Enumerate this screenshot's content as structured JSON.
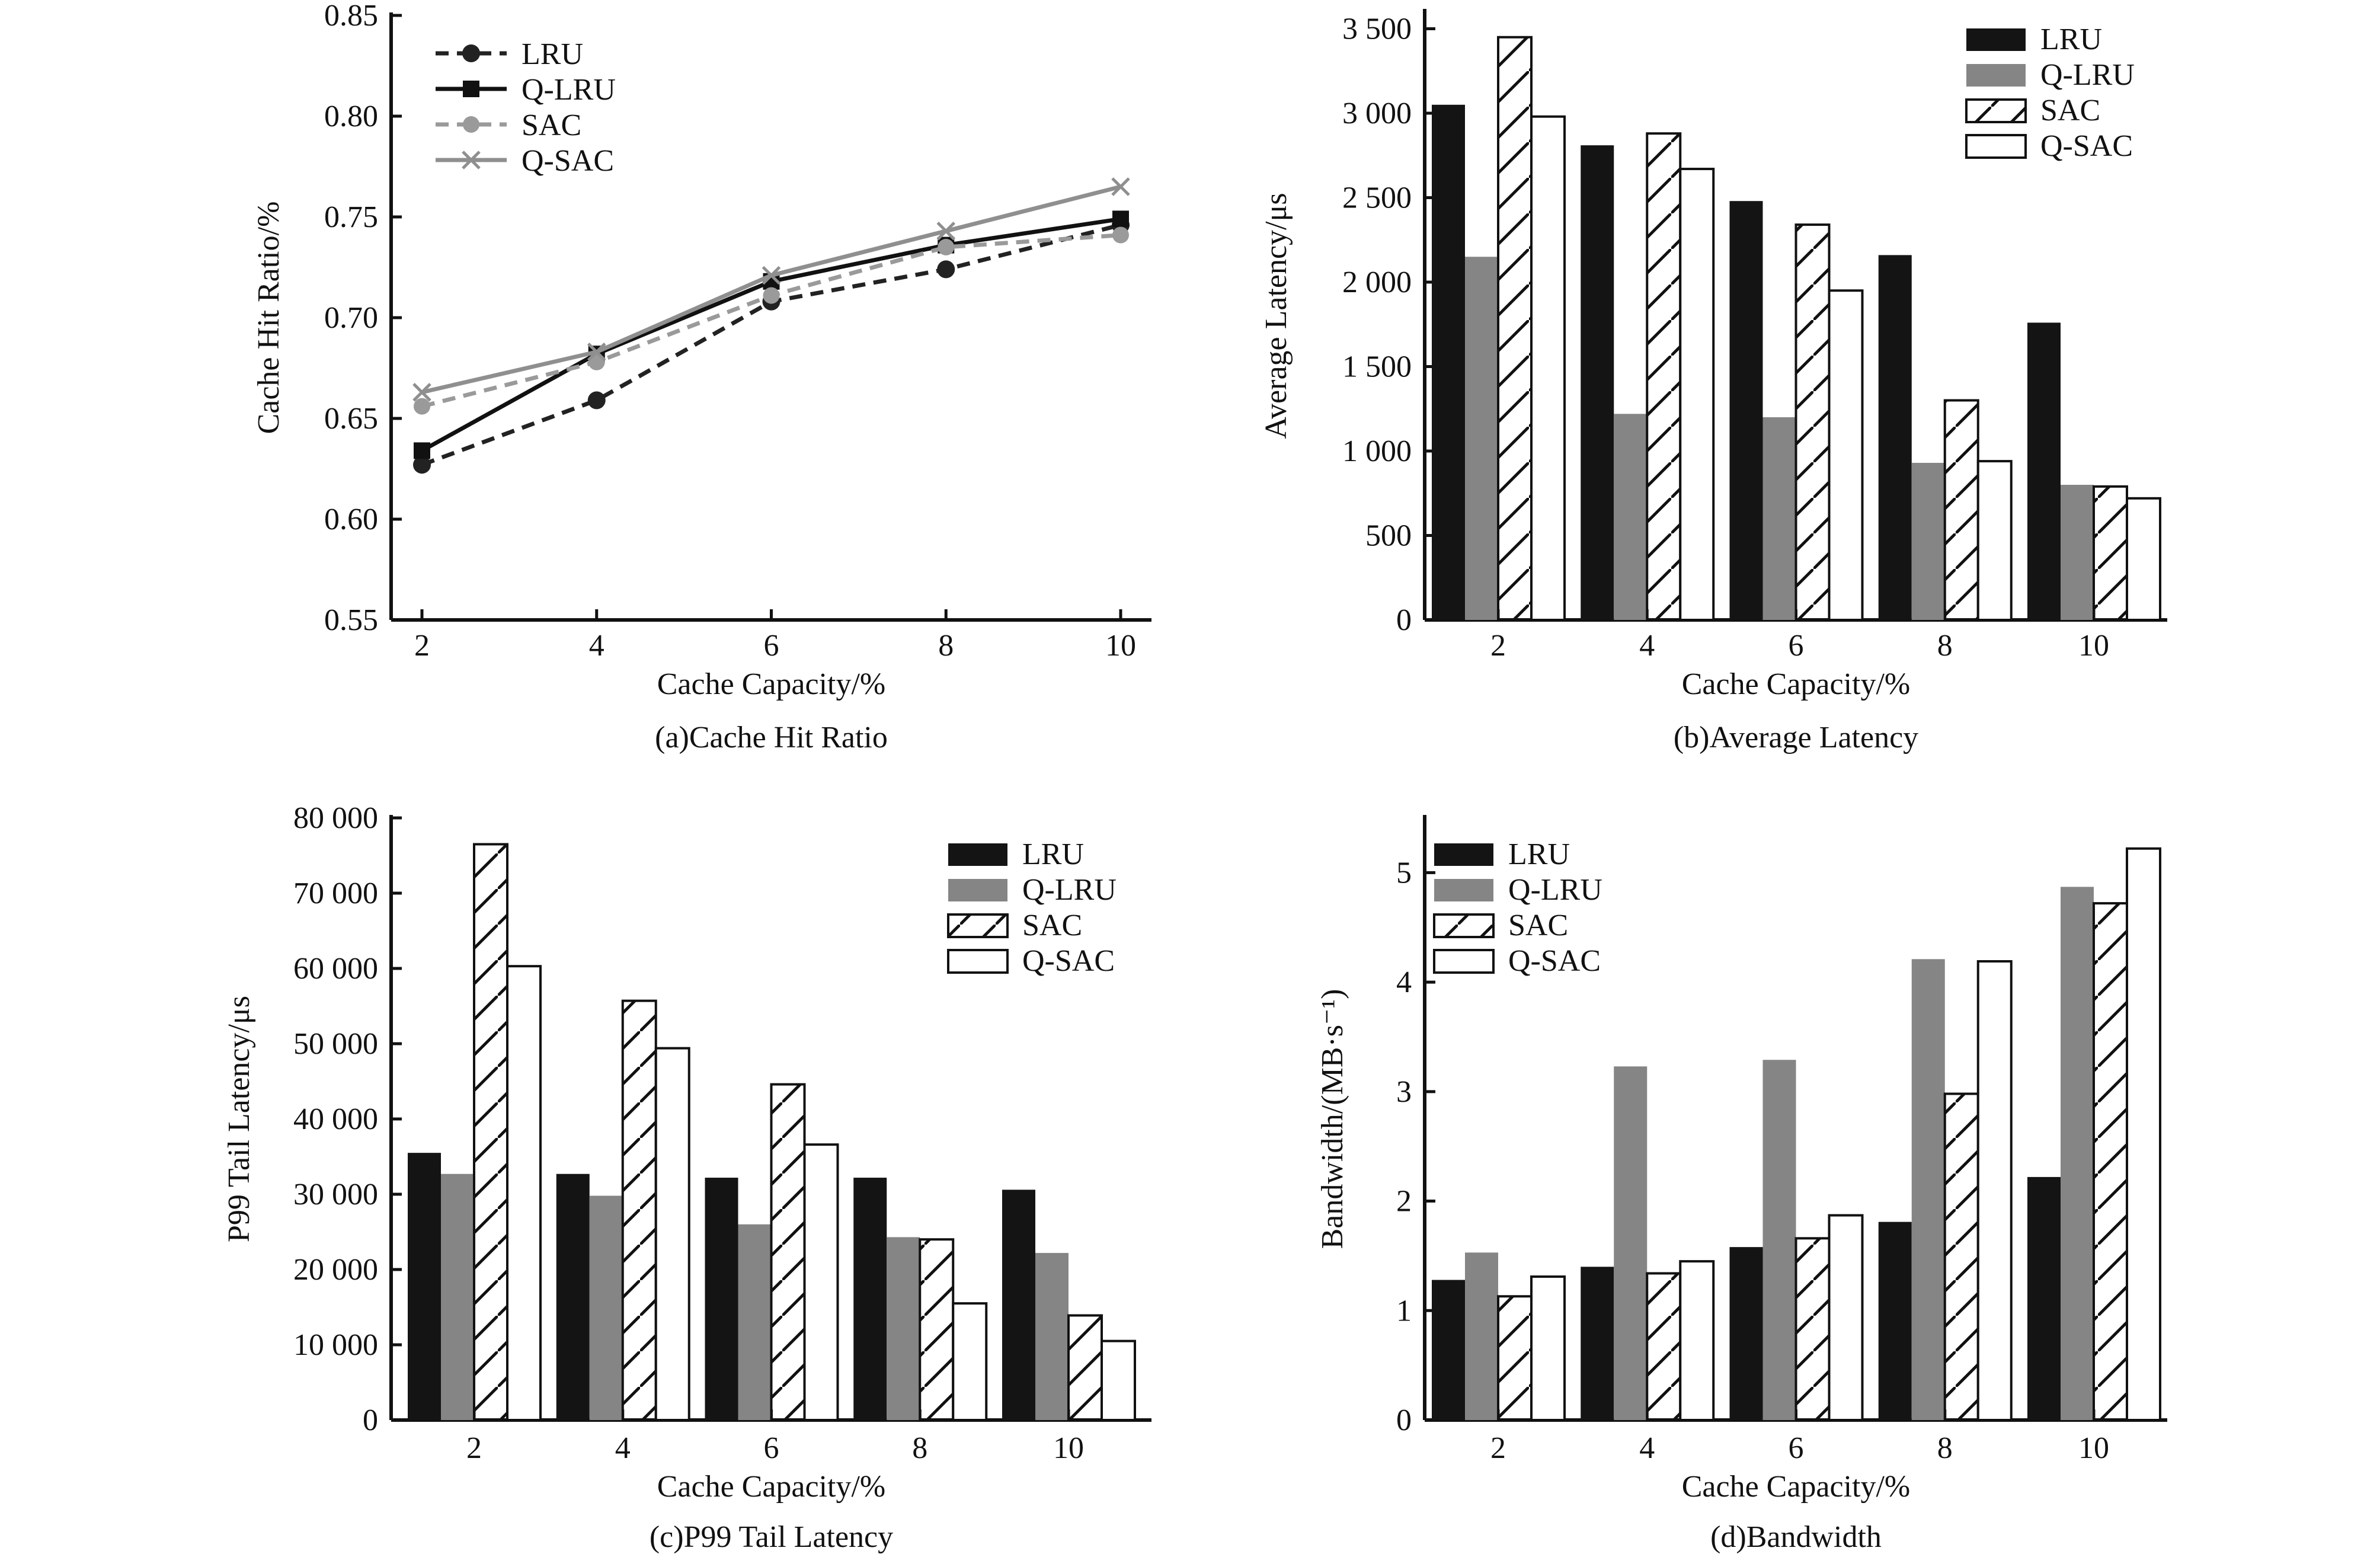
{
  "colors": {
    "LRU": "#141414",
    "Q-LRU": "#858585",
    "SAC": "#ffffff",
    "Q-SAC": "#ffffff",
    "Q-SAC-line": "#8f8f8f",
    "SAC-line": "#9a9a9a"
  },
  "chart_data": [
    {
      "type": "line",
      "title": "(a)Cache Hit Ratio",
      "xlabel": "Cache Capacity/%",
      "ylabel": "Cache Hit Ratio/%",
      "categories": [
        "2",
        "4",
        "6",
        "8",
        "10"
      ],
      "ylim": [
        0.55,
        0.85
      ],
      "yticks": [
        0.55,
        0.6,
        0.65,
        0.7,
        0.75,
        0.8,
        0.85
      ],
      "ytick_labels": [
        "0.55",
        "0.60",
        "0.65",
        "0.70",
        "0.75",
        "0.80",
        "0.85"
      ],
      "legend": "top-left",
      "series": [
        {
          "name": "LRU",
          "style": "dashed",
          "marker": "circle",
          "values": [
            0.627,
            0.659,
            0.708,
            0.724,
            0.746
          ]
        },
        {
          "name": "Q-LRU",
          "style": "solid",
          "marker": "square",
          "values": [
            0.634,
            0.682,
            0.718,
            0.736,
            0.749
          ]
        },
        {
          "name": "SAC",
          "style": "dashed",
          "marker": "hexagon",
          "values": [
            0.656,
            0.678,
            0.711,
            0.735,
            0.741
          ]
        },
        {
          "name": "Q-SAC",
          "style": "solid",
          "marker": "x",
          "values": [
            0.663,
            0.683,
            0.721,
            0.743,
            0.765
          ]
        }
      ]
    },
    {
      "type": "bar",
      "title": "(b)Average Latency",
      "xlabel": "Cache Capacity/%",
      "ylabel": "Average Latency/μs",
      "categories": [
        "2",
        "4",
        "6",
        "8",
        "10"
      ],
      "ylim": [
        0,
        3600
      ],
      "yticks": [
        0,
        500,
        1000,
        1500,
        2000,
        2500,
        3000,
        3500
      ],
      "ytick_labels": [
        "0",
        "500",
        "1 000",
        "1 500",
        "2 000",
        "2 500",
        "3 000",
        "3 500"
      ],
      "legend": "top-right",
      "series": [
        {
          "name": "LRU",
          "values": [
            3050,
            2810,
            2480,
            2160,
            1760
          ]
        },
        {
          "name": "Q-LRU",
          "values": [
            2150,
            1220,
            1200,
            930,
            800
          ]
        },
        {
          "name": "SAC",
          "values": [
            3450,
            2880,
            2340,
            1300,
            790
          ]
        },
        {
          "name": "Q-SAC",
          "values": [
            2980,
            2670,
            1950,
            940,
            720
          ]
        }
      ]
    },
    {
      "type": "bar",
      "title": "(c)P99 Tail Latency",
      "xlabel": "Cache Capacity/%",
      "ylabel": "P99 Tail Latency/μs",
      "categories": [
        "2",
        "4",
        "6",
        "8",
        "10"
      ],
      "ylim": [
        0,
        80000
      ],
      "yticks": [
        0,
        10000,
        20000,
        30000,
        40000,
        50000,
        60000,
        70000,
        80000
      ],
      "ytick_labels": [
        "0",
        "10 000",
        "20 000",
        "30 000",
        "40 000",
        "50 000",
        "60 000",
        "70 000",
        "80 000"
      ],
      "legend": "top-right",
      "series": [
        {
          "name": "LRU",
          "values": [
            35500,
            32700,
            32200,
            32200,
            30600
          ]
        },
        {
          "name": "Q-LRU",
          "values": [
            32700,
            29800,
            26000,
            24300,
            22200
          ]
        },
        {
          "name": "SAC",
          "values": [
            76500,
            55700,
            44600,
            24000,
            13900
          ]
        },
        {
          "name": "Q-SAC",
          "values": [
            60300,
            49400,
            36600,
            15500,
            10500
          ]
        }
      ]
    },
    {
      "type": "bar",
      "title": "(d)Bandwidth",
      "xlabel": "Cache Capacity/%",
      "ylabel": "Bandwidth/(MB·s⁻¹)",
      "categories": [
        "2",
        "4",
        "6",
        "8",
        "10"
      ],
      "ylim": [
        0,
        5.5
      ],
      "yticks": [
        0,
        1,
        2,
        3,
        4,
        5
      ],
      "ytick_labels": [
        "0",
        "1",
        "2",
        "3",
        "4",
        "5"
      ],
      "legend": "top-left",
      "series": [
        {
          "name": "LRU",
          "values": [
            1.28,
            1.4,
            1.58,
            1.81,
            2.22
          ]
        },
        {
          "name": "Q-LRU",
          "values": [
            1.53,
            3.23,
            3.29,
            4.21,
            4.87
          ]
        },
        {
          "name": "SAC",
          "values": [
            1.13,
            1.34,
            1.66,
            2.98,
            4.72
          ]
        },
        {
          "name": "Q-SAC",
          "values": [
            1.31,
            1.45,
            1.87,
            4.19,
            5.22
          ]
        }
      ]
    }
  ]
}
